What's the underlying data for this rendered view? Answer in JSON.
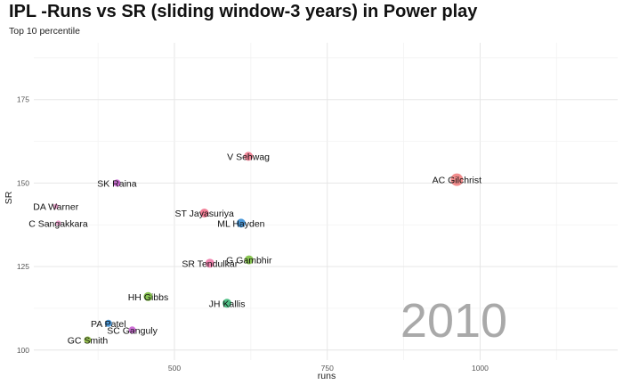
{
  "title": "IPL -Runs vs SR (sliding window-3 years) in  Power play",
  "subtitle": "Top 10 percentile",
  "chart_data": {
    "type": "scatter",
    "title": "IPL -Runs vs SR (sliding window-3 years) in  Power play",
    "subtitle": "Top 10 percentile",
    "xlabel": "runs",
    "ylabel": "SR",
    "xlim": [
      270,
      1225
    ],
    "ylim": [
      97,
      192
    ],
    "xticks": [
      500,
      750,
      1000
    ],
    "yticks": [
      100,
      125,
      150,
      175
    ],
    "grid": true,
    "legend": "none",
    "annotation": "2010",
    "points": [
      {
        "label": "AC Gilchrist",
        "x": 962,
        "y": 151,
        "color": "#f08080",
        "size": 7
      },
      {
        "label": "V Sehwag",
        "x": 621,
        "y": 158,
        "color": "#f07a8e",
        "size": 5
      },
      {
        "label": "SK Raina",
        "x": 406,
        "y": 150,
        "color": "#c85fd0",
        "size": 4
      },
      {
        "label": "DA Warner",
        "x": 306,
        "y": 143,
        "color": "#e89ac8",
        "size": 3
      },
      {
        "label": "C Sangakkara",
        "x": 310,
        "y": 138,
        "color": "#e89ac8",
        "size": 3
      },
      {
        "label": "ST Jayasuriya",
        "x": 549,
        "y": 141,
        "color": "#ef6f8a",
        "size": 5
      },
      {
        "label": "ML Hayden",
        "x": 609,
        "y": 138,
        "color": "#3a8fd6",
        "size": 5
      },
      {
        "label": "G Gambhir",
        "x": 622,
        "y": 127,
        "color": "#7cbf3f",
        "size": 5
      },
      {
        "label": "SR Tendulkar",
        "x": 558,
        "y": 126,
        "color": "#f07aa8",
        "size": 5
      },
      {
        "label": "HH Gibbs",
        "x": 457,
        "y": 116,
        "color": "#7cbf3f",
        "size": 5
      },
      {
        "label": "JH Kallis",
        "x": 586,
        "y": 114,
        "color": "#3cb878",
        "size": 5
      },
      {
        "label": "PA Patel",
        "x": 392,
        "y": 108,
        "color": "#3a8fd6",
        "size": 4
      },
      {
        "label": "SC Ganguly",
        "x": 431,
        "y": 106,
        "color": "#c85fd0",
        "size": 4
      },
      {
        "label": "GC Smith",
        "x": 358,
        "y": 103,
        "color": "#8fbf3f",
        "size": 4
      }
    ]
  }
}
